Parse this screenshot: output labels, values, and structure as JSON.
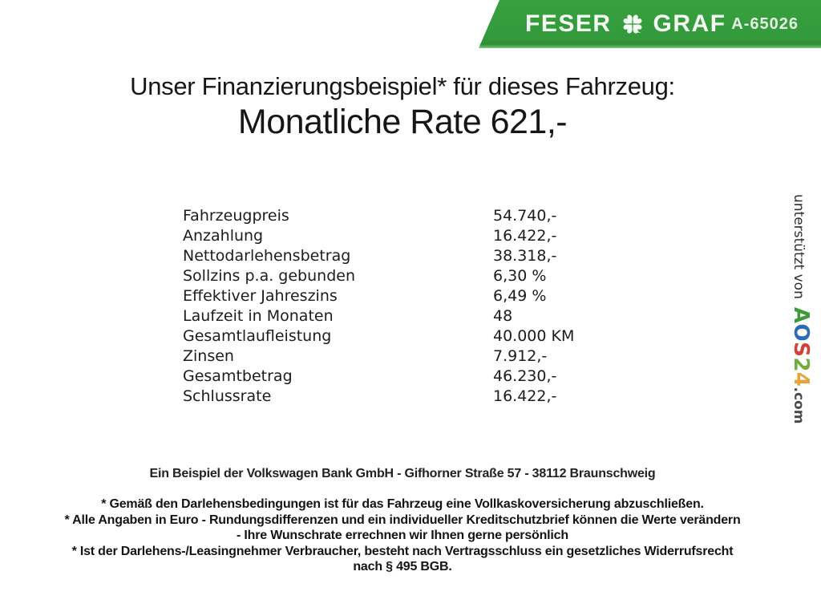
{
  "banner": {
    "brand_left": "FESER",
    "brand_right": "GRAF",
    "ref_number": "A-65026",
    "green": "#339a3b",
    "icons": {
      "brand_separator": "four-leaf-clover"
    }
  },
  "title": {
    "line1": "Unser Finanzierungsbeispiel* für dieses Fahrzeug:",
    "line2": "Monatliche Rate 621,-"
  },
  "finance_table": {
    "rows": [
      {
        "label": "Fahrzeugpreis",
        "value": "54.740,-"
      },
      {
        "label": "Anzahlung",
        "value": "16.422,-"
      },
      {
        "label": "Nettodarlehensbetrag",
        "value": "38.318,-"
      },
      {
        "label": "Sollzins p.a. gebunden",
        "value": "6,30 %"
      },
      {
        "label": "Effektiver Jahreszins",
        "value": "6,49 %"
      },
      {
        "label": "Laufzeit in Monaten",
        "value": "48"
      },
      {
        "label": "Gesamtlaufleistung",
        "value": "40.000 KM"
      },
      {
        "label": "Zinsen",
        "value": "7.912,-"
      },
      {
        "label": "Gesamtbetrag",
        "value": "46.230,-"
      },
      {
        "label": "Schlussrate",
        "value": "16.422,-"
      }
    ]
  },
  "sidebar": {
    "prefix": "unterstützt von",
    "brand_letters": [
      {
        "char": "A",
        "color": "#3f9b3a"
      },
      {
        "char": "O",
        "color": "#2a6db4"
      },
      {
        "char": "S",
        "color": "#d53f35"
      },
      {
        "char": "2",
        "color": "#6fae3d"
      },
      {
        "char": "4",
        "color": "#e2a53b"
      }
    ],
    "suffix": ".com"
  },
  "footer": {
    "bank_line": "Ein Beispiel der Volkswagen Bank GmbH - Gifhorner Straße 57 - 38112 Braunschweig",
    "notes": [
      {
        "lines": [
          "* Gemäß den Darlehensbedingungen ist für das Fahrzeug eine Vollkaskoversicherung abzuschließen."
        ]
      },
      {
        "lines": [
          "* Alle Angaben in Euro - Rundungsdifferenzen und ein individueller Kreditschutzbrief können die Werte verändern",
          "- Ihre Wunschrate errechnen wir Ihnen gerne persönlich"
        ]
      },
      {
        "lines": [
          "* Ist der Darlehens-/Leasingnehmer Verbraucher, besteht nach Vertragsschluss ein gesetzliches Widerrufsrecht",
          "nach § 495 BGB."
        ]
      }
    ]
  }
}
